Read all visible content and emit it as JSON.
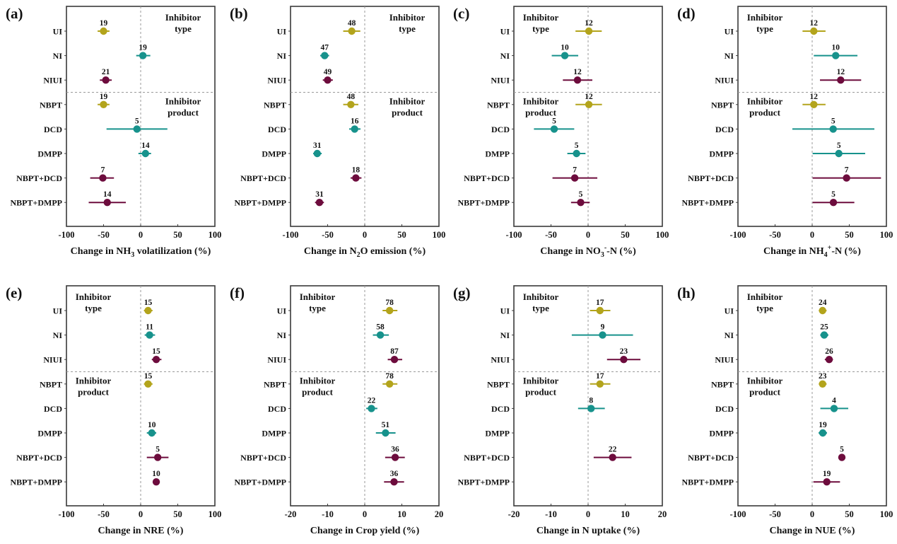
{
  "chart_data": {
    "type": "forest",
    "categories": [
      "UI",
      "NI",
      "NIUI",
      "NBPT",
      "DCD",
      "DMPP",
      "NBPT+DCD",
      "NBPT+DMPP"
    ],
    "groups": [
      {
        "label": "Inhibitor type",
        "line1": "Inhibitor",
        "line2": "type",
        "categories": [
          "UI",
          "NI",
          "NIUI"
        ]
      },
      {
        "label": "Inhibitor product",
        "line1": "Inhibitor",
        "line2": "product",
        "categories": [
          "NBPT",
          "DCD",
          "DMPP",
          "NBPT+DCD",
          "NBPT+DMPP"
        ]
      }
    ],
    "category_colors": {
      "UI": "#b3a41c",
      "NI": "#17928c",
      "NIUI": "#6d0c3d",
      "NBPT": "#b3a41c",
      "DCD": "#17928c",
      "DMPP": "#17928c",
      "NBPT+DCD": "#6d0c3d",
      "NBPT+DMPP": "#6d0c3d"
    },
    "panels": [
      {
        "id": "a",
        "tag": "(a)",
        "xlabel_parts": [
          "Change in NH",
          "3",
          " volatilization (%)"
        ],
        "xlabel_sub_type": "sub",
        "xlim": [
          -100,
          100
        ],
        "xticks": [
          -100,
          -50,
          0,
          50,
          100
        ],
        "group_label_side": "right",
        "points": [
          {
            "category": "UI",
            "mean": -50,
            "lo": -58,
            "hi": -42,
            "n": 19
          },
          {
            "category": "NI",
            "mean": 3,
            "lo": -6,
            "hi": 13,
            "n": 19
          },
          {
            "category": "NIUI",
            "mean": -47,
            "lo": -55,
            "hi": -39,
            "n": 21
          },
          {
            "category": "NBPT",
            "mean": -50,
            "lo": -58,
            "hi": -42,
            "n": 19
          },
          {
            "category": "DCD",
            "mean": -5,
            "lo": -46,
            "hi": 36,
            "n": 5
          },
          {
            "category": "DMPP",
            "mean": 6.5,
            "lo": -3,
            "hi": 14,
            "n": 14
          },
          {
            "category": "NBPT+DCD",
            "mean": -51,
            "lo": -68,
            "hi": -36,
            "n": 7
          },
          {
            "category": "NBPT+DMPP",
            "mean": -45,
            "lo": -70,
            "hi": -20,
            "n": 14
          }
        ]
      },
      {
        "id": "b",
        "tag": "(b)",
        "xlabel_parts": [
          "Change in N",
          "2",
          "O emission (%)"
        ],
        "xlabel_sub_type": "sub",
        "xlim": [
          -100,
          100
        ],
        "xticks": [
          -100,
          -50,
          0,
          50,
          100
        ],
        "group_label_side": "right",
        "points": [
          {
            "category": "UI",
            "mean": -17.5,
            "lo": -29,
            "hi": -6,
            "n": 48
          },
          {
            "category": "NI",
            "mean": -54,
            "lo": -60,
            "hi": -48,
            "n": 47
          },
          {
            "category": "NIUI",
            "mean": -50,
            "lo": -56.5,
            "hi": -43,
            "n": 49
          },
          {
            "category": "NBPT",
            "mean": -18.7,
            "lo": -29,
            "hi": -8.6,
            "n": 48
          },
          {
            "category": "DCD",
            "mean": -13.6,
            "lo": -21,
            "hi": -5.7,
            "n": 16
          },
          {
            "category": "DMPP",
            "mean": -64,
            "lo": -69.5,
            "hi": -58,
            "n": 31
          },
          {
            "category": "NBPT+DCD",
            "mean": -12,
            "lo": -19,
            "hi": -4.4,
            "n": 18
          },
          {
            "category": "NBPT+DMPP",
            "mean": -61,
            "lo": -67,
            "hi": -55,
            "n": 31
          }
        ]
      },
      {
        "id": "c",
        "tag": "(c)",
        "xlabel_parts": [
          "Change in NO",
          "3",
          "-",
          "-N (%)"
        ],
        "xlabel_sub_type": "sub-sup",
        "xlim": [
          -100,
          100
        ],
        "xticks": [
          -100,
          -50,
          0,
          50,
          100
        ],
        "group_label_side": "left",
        "points": [
          {
            "category": "UI",
            "mean": 1,
            "lo": -17,
            "hi": 18.4,
            "n": 12
          },
          {
            "category": "NI",
            "mean": -31.4,
            "lo": -49,
            "hi": -13.3,
            "n": 10
          },
          {
            "category": "NIUI",
            "mean": -14.3,
            "lo": -34,
            "hi": 5.7,
            "n": 12
          },
          {
            "category": "NBPT",
            "mean": 1,
            "lo": -17,
            "hi": 18.7,
            "n": 12
          },
          {
            "category": "DCD",
            "mean": -45.7,
            "lo": -73,
            "hi": -18.7,
            "n": 5
          },
          {
            "category": "DMPP",
            "mean": -15.6,
            "lo": -28,
            "hi": -3.5,
            "n": 5
          },
          {
            "category": "NBPT+DCD",
            "mean": -18,
            "lo": -48,
            "hi": 12.4,
            "n": 7
          },
          {
            "category": "NBPT+DMPP",
            "mean": -10,
            "lo": -23,
            "hi": 2.2,
            "n": 5
          }
        ]
      },
      {
        "id": "d",
        "tag": "(d)",
        "xlabel_parts": [
          "Change in NH",
          "4",
          "+",
          "-N (%)"
        ],
        "xlabel_sub_type": "sub-sup",
        "xlim": [
          -100,
          100
        ],
        "xticks": [
          -100,
          -50,
          0,
          50,
          100
        ],
        "group_label_side": "left",
        "points": [
          {
            "category": "UI",
            "mean": 2.2,
            "lo": -13,
            "hi": 18,
            "n": 12
          },
          {
            "category": "NI",
            "mean": 31.7,
            "lo": 2.2,
            "hi": 61,
            "n": 10
          },
          {
            "category": "NIUI",
            "mean": 38.4,
            "lo": 10.5,
            "hi": 66,
            "n": 12
          },
          {
            "category": "NBPT",
            "mean": 2.2,
            "lo": -13,
            "hi": 18,
            "n": 12
          },
          {
            "category": "DCD",
            "mean": 28.3,
            "lo": -26.7,
            "hi": 83.8,
            "n": 5
          },
          {
            "category": "DMPP",
            "mean": 35.9,
            "lo": 0.6,
            "hi": 71.4,
            "n": 5
          },
          {
            "category": "NBPT+DCD",
            "mean": 46.3,
            "lo": 0.6,
            "hi": 92.7,
            "n": 7
          },
          {
            "category": "NBPT+DMPP",
            "mean": 28.6,
            "lo": 0.6,
            "hi": 56.8,
            "n": 5
          }
        ]
      },
      {
        "id": "e",
        "tag": "(e)",
        "xlabel_parts": [
          "Change in NRE (%)"
        ],
        "xlabel_sub_type": "none",
        "xlim": [
          -100,
          100
        ],
        "xticks": [
          -100,
          -50,
          0,
          50,
          100
        ],
        "group_label_side": "left",
        "points": [
          {
            "category": "UI",
            "mean": 10,
            "lo": 4.4,
            "hi": 16,
            "n": 15
          },
          {
            "category": "NI",
            "mean": 12,
            "lo": 5.4,
            "hi": 19.4,
            "n": 11
          },
          {
            "category": "NIUI",
            "mean": 21,
            "lo": 15,
            "hi": 28,
            "n": 15
          },
          {
            "category": "NBPT",
            "mean": 10,
            "lo": 4.4,
            "hi": 16,
            "n": 15
          },
          {
            "category": "DMPP",
            "mean": 15,
            "lo": 8.3,
            "hi": 21,
            "n": 10
          },
          {
            "category": "NBPT+DCD",
            "mean": 23,
            "lo": 8.3,
            "hi": 37.5,
            "n": 5
          },
          {
            "category": "NBPT+DMPP",
            "mean": 21,
            "lo": 18,
            "hi": 24,
            "n": 10
          }
        ]
      },
      {
        "id": "f",
        "tag": "(f)",
        "xlabel_parts": [
          "Change in Crop yield (%)"
        ],
        "xlabel_sub_type": "none",
        "xlim": [
          -20,
          20
        ],
        "xticks": [
          -20,
          -10,
          0,
          10,
          20
        ],
        "group_label_side": "left",
        "points": [
          {
            "category": "UI",
            "mean": 6.7,
            "lo": 4.8,
            "hi": 8.8,
            "n": 78
          },
          {
            "category": "NI",
            "mean": 4.2,
            "lo": 2.2,
            "hi": 6.5,
            "n": 58
          },
          {
            "category": "NIUI",
            "mean": 8.0,
            "lo": 6.2,
            "hi": 10.1,
            "n": 87
          },
          {
            "category": "NBPT",
            "mean": 6.7,
            "lo": 4.8,
            "hi": 8.8,
            "n": 78
          },
          {
            "category": "DCD",
            "mean": 1.8,
            "lo": 0.4,
            "hi": 3.4,
            "n": 22
          },
          {
            "category": "DMPP",
            "mean": 5.6,
            "lo": 3.0,
            "hi": 8.3,
            "n": 51
          },
          {
            "category": "NBPT+DCD",
            "mean": 8.2,
            "lo": 5.5,
            "hi": 10.8,
            "n": 36
          },
          {
            "category": "NBPT+DMPP",
            "mean": 7.9,
            "lo": 5.2,
            "hi": 10.6,
            "n": 36
          }
        ]
      },
      {
        "id": "g",
        "tag": "(g)",
        "xlabel_parts": [
          "Change in N uptake (%)"
        ],
        "xlabel_sub_type": "none",
        "xlim": [
          -20,
          20
        ],
        "xticks": [
          -20,
          -10,
          0,
          10,
          20
        ],
        "group_label_side": "left",
        "points": [
          {
            "category": "UI",
            "mean": 3.2,
            "lo": 0.5,
            "hi": 6.0,
            "n": 17
          },
          {
            "category": "NI",
            "mean": 3.9,
            "lo": -4.4,
            "hi": 12.1,
            "n": 9
          },
          {
            "category": "NIUI",
            "mean": 9.6,
            "lo": 5.1,
            "hi": 14.1,
            "n": 23
          },
          {
            "category": "NBPT",
            "mean": 3.2,
            "lo": 0.5,
            "hi": 6.0,
            "n": 17
          },
          {
            "category": "DCD",
            "mean": 0.8,
            "lo": -2.7,
            "hi": 4.5,
            "n": 8
          },
          {
            "category": "NBPT+DCD",
            "mean": 6.6,
            "lo": 1.5,
            "hi": 11.7,
            "n": 22
          }
        ]
      },
      {
        "id": "h",
        "tag": "(h)",
        "xlabel_parts": [
          "Change in NUE (%)"
        ],
        "xlabel_sub_type": "none",
        "xlim": [
          -100,
          100
        ],
        "xticks": [
          -100,
          -50,
          0,
          50,
          100
        ],
        "group_label_side": "left",
        "points": [
          {
            "category": "UI",
            "mean": 14,
            "lo": 8.9,
            "hi": 19.4,
            "n": 24
          },
          {
            "category": "NI",
            "mean": 16.2,
            "lo": 10.8,
            "hi": 21.9,
            "n": 25
          },
          {
            "category": "NIUI",
            "mean": 22.9,
            "lo": 17,
            "hi": 28,
            "n": 26
          },
          {
            "category": "NBPT",
            "mean": 14,
            "lo": 8.9,
            "hi": 19.4,
            "n": 23
          },
          {
            "category": "DCD",
            "mean": 29.5,
            "lo": 11,
            "hi": 48.6,
            "n": 4
          },
          {
            "category": "DMPP",
            "mean": 14.3,
            "lo": 8.6,
            "hi": 20,
            "n": 19
          },
          {
            "category": "NBPT+DCD",
            "mean": 40,
            "lo": 36.8,
            "hi": 43,
            "n": 5
          },
          {
            "category": "NBPT+DMPP",
            "mean": 19.7,
            "lo": 1.6,
            "hi": 37.5,
            "n": 19
          }
        ]
      }
    ]
  }
}
